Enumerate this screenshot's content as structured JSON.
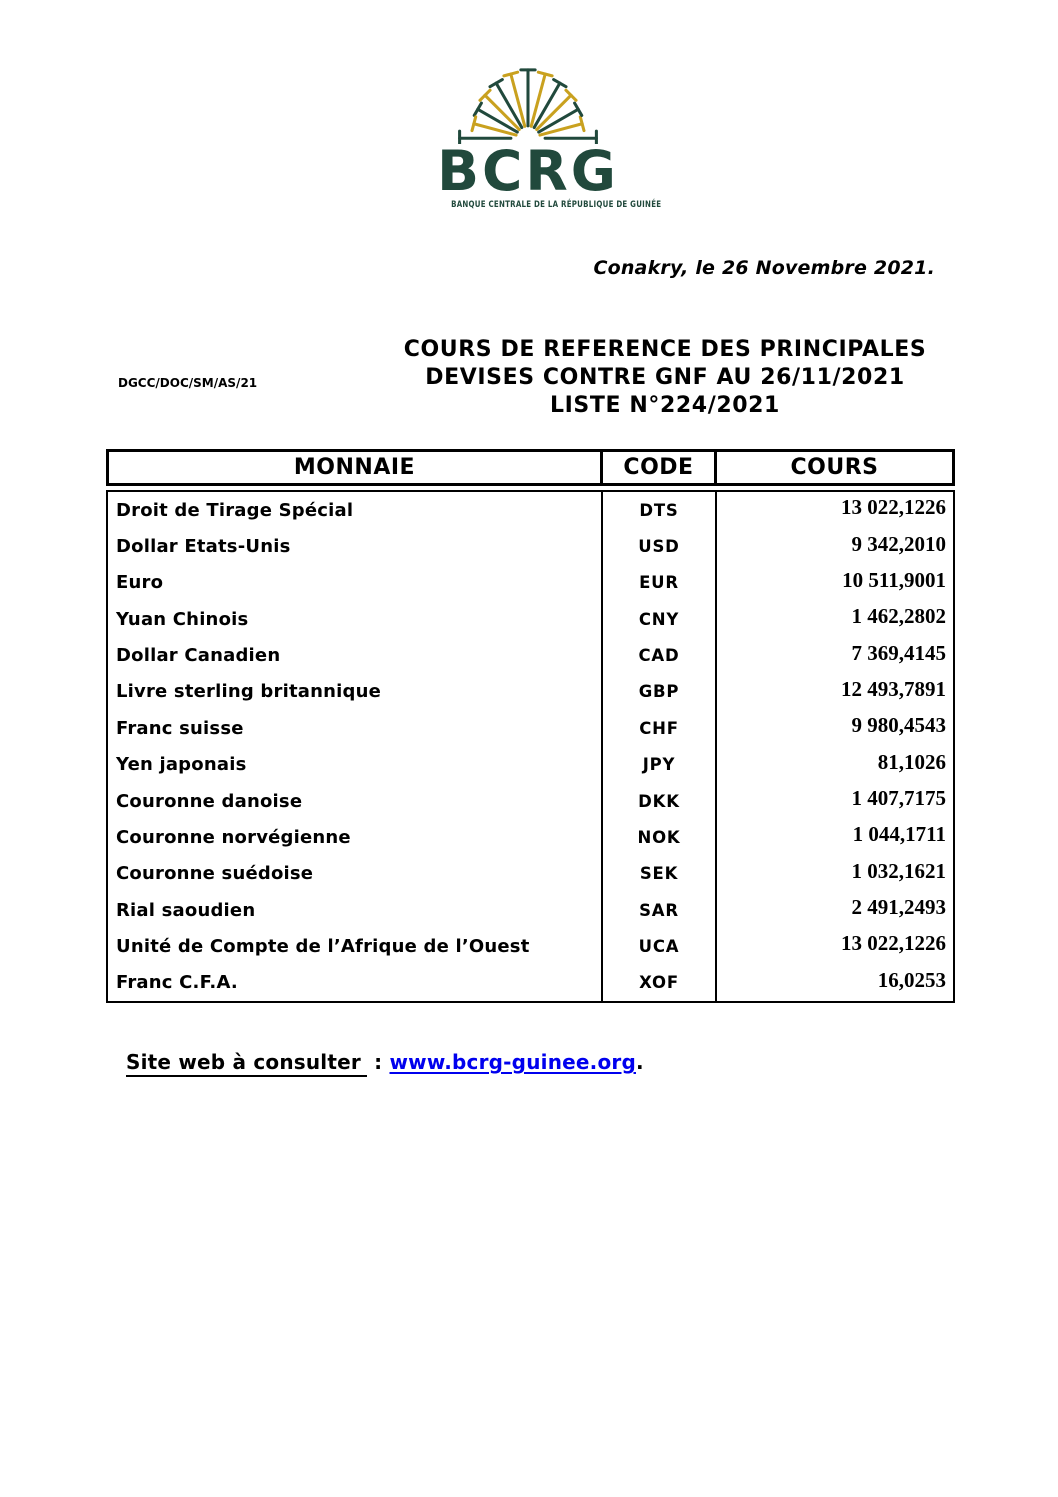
{
  "colors": {
    "logo_green": "#21493c",
    "logo_gold": "#c9a11f",
    "link_blue": "#0000ee"
  },
  "logo": {
    "acronym": "BCRG",
    "tagline": "BANQUE CENTRALE DE LA RÉPUBLIQUE DE GUINÉE"
  },
  "dateline": "Conakry, le 26 Novembre 2021.",
  "reference_code": "DGCC/DOC/SM/AS/21",
  "title": {
    "line1": "COURS DE REFERENCE DES PRINCIPALES",
    "line2": "DEVISES CONTRE GNF AU 26/11/2021",
    "line3": "LISTE N°224/2021"
  },
  "table": {
    "headers": [
      "MONNAIE",
      "CODE",
      "COURS"
    ],
    "rows": [
      {
        "monnaie": "Droit de Tirage Spécial",
        "code": "DTS",
        "cours": "13 022,1226"
      },
      {
        "monnaie": "Dollar Etats-Unis",
        "code": "USD",
        "cours": "9 342,2010"
      },
      {
        "monnaie": "Euro",
        "code": "EUR",
        "cours": "10 511,9001"
      },
      {
        "monnaie": "Yuan Chinois",
        "code": "CNY",
        "cours": "1 462,2802"
      },
      {
        "monnaie": "Dollar Canadien",
        "code": "CAD",
        "cours": "7 369,4145"
      },
      {
        "monnaie": "Livre sterling britannique",
        "code": "GBP",
        "cours": "12 493,7891"
      },
      {
        "monnaie": "Franc suisse",
        "code": "CHF",
        "cours": "9 980,4543"
      },
      {
        "monnaie": "Yen japonais",
        "code": "JPY",
        "cours": "81,1026"
      },
      {
        "monnaie": "Couronne danoise",
        "code": "DKK",
        "cours": "1 407,7175"
      },
      {
        "monnaie": "Couronne norvégienne",
        "code": "NOK",
        "cours": "1 044,1711"
      },
      {
        "monnaie": "Couronne suédoise",
        "code": "SEK",
        "cours": "1 032,1621"
      },
      {
        "monnaie": "Rial saoudien",
        "code": "SAR",
        "cours": "2 491,2493"
      },
      {
        "monnaie": "Unité de Compte de l’Afrique de l’Ouest",
        "code": "UCA",
        "cours": "13 022,1226"
      },
      {
        "monnaie": "Franc C.F.A.",
        "code": "XOF",
        "cours": "16,0253"
      }
    ]
  },
  "footer": {
    "label": "Site web à consulter",
    "separator": " : ",
    "link": "www.bcrg-guinee.org",
    "period": "."
  }
}
